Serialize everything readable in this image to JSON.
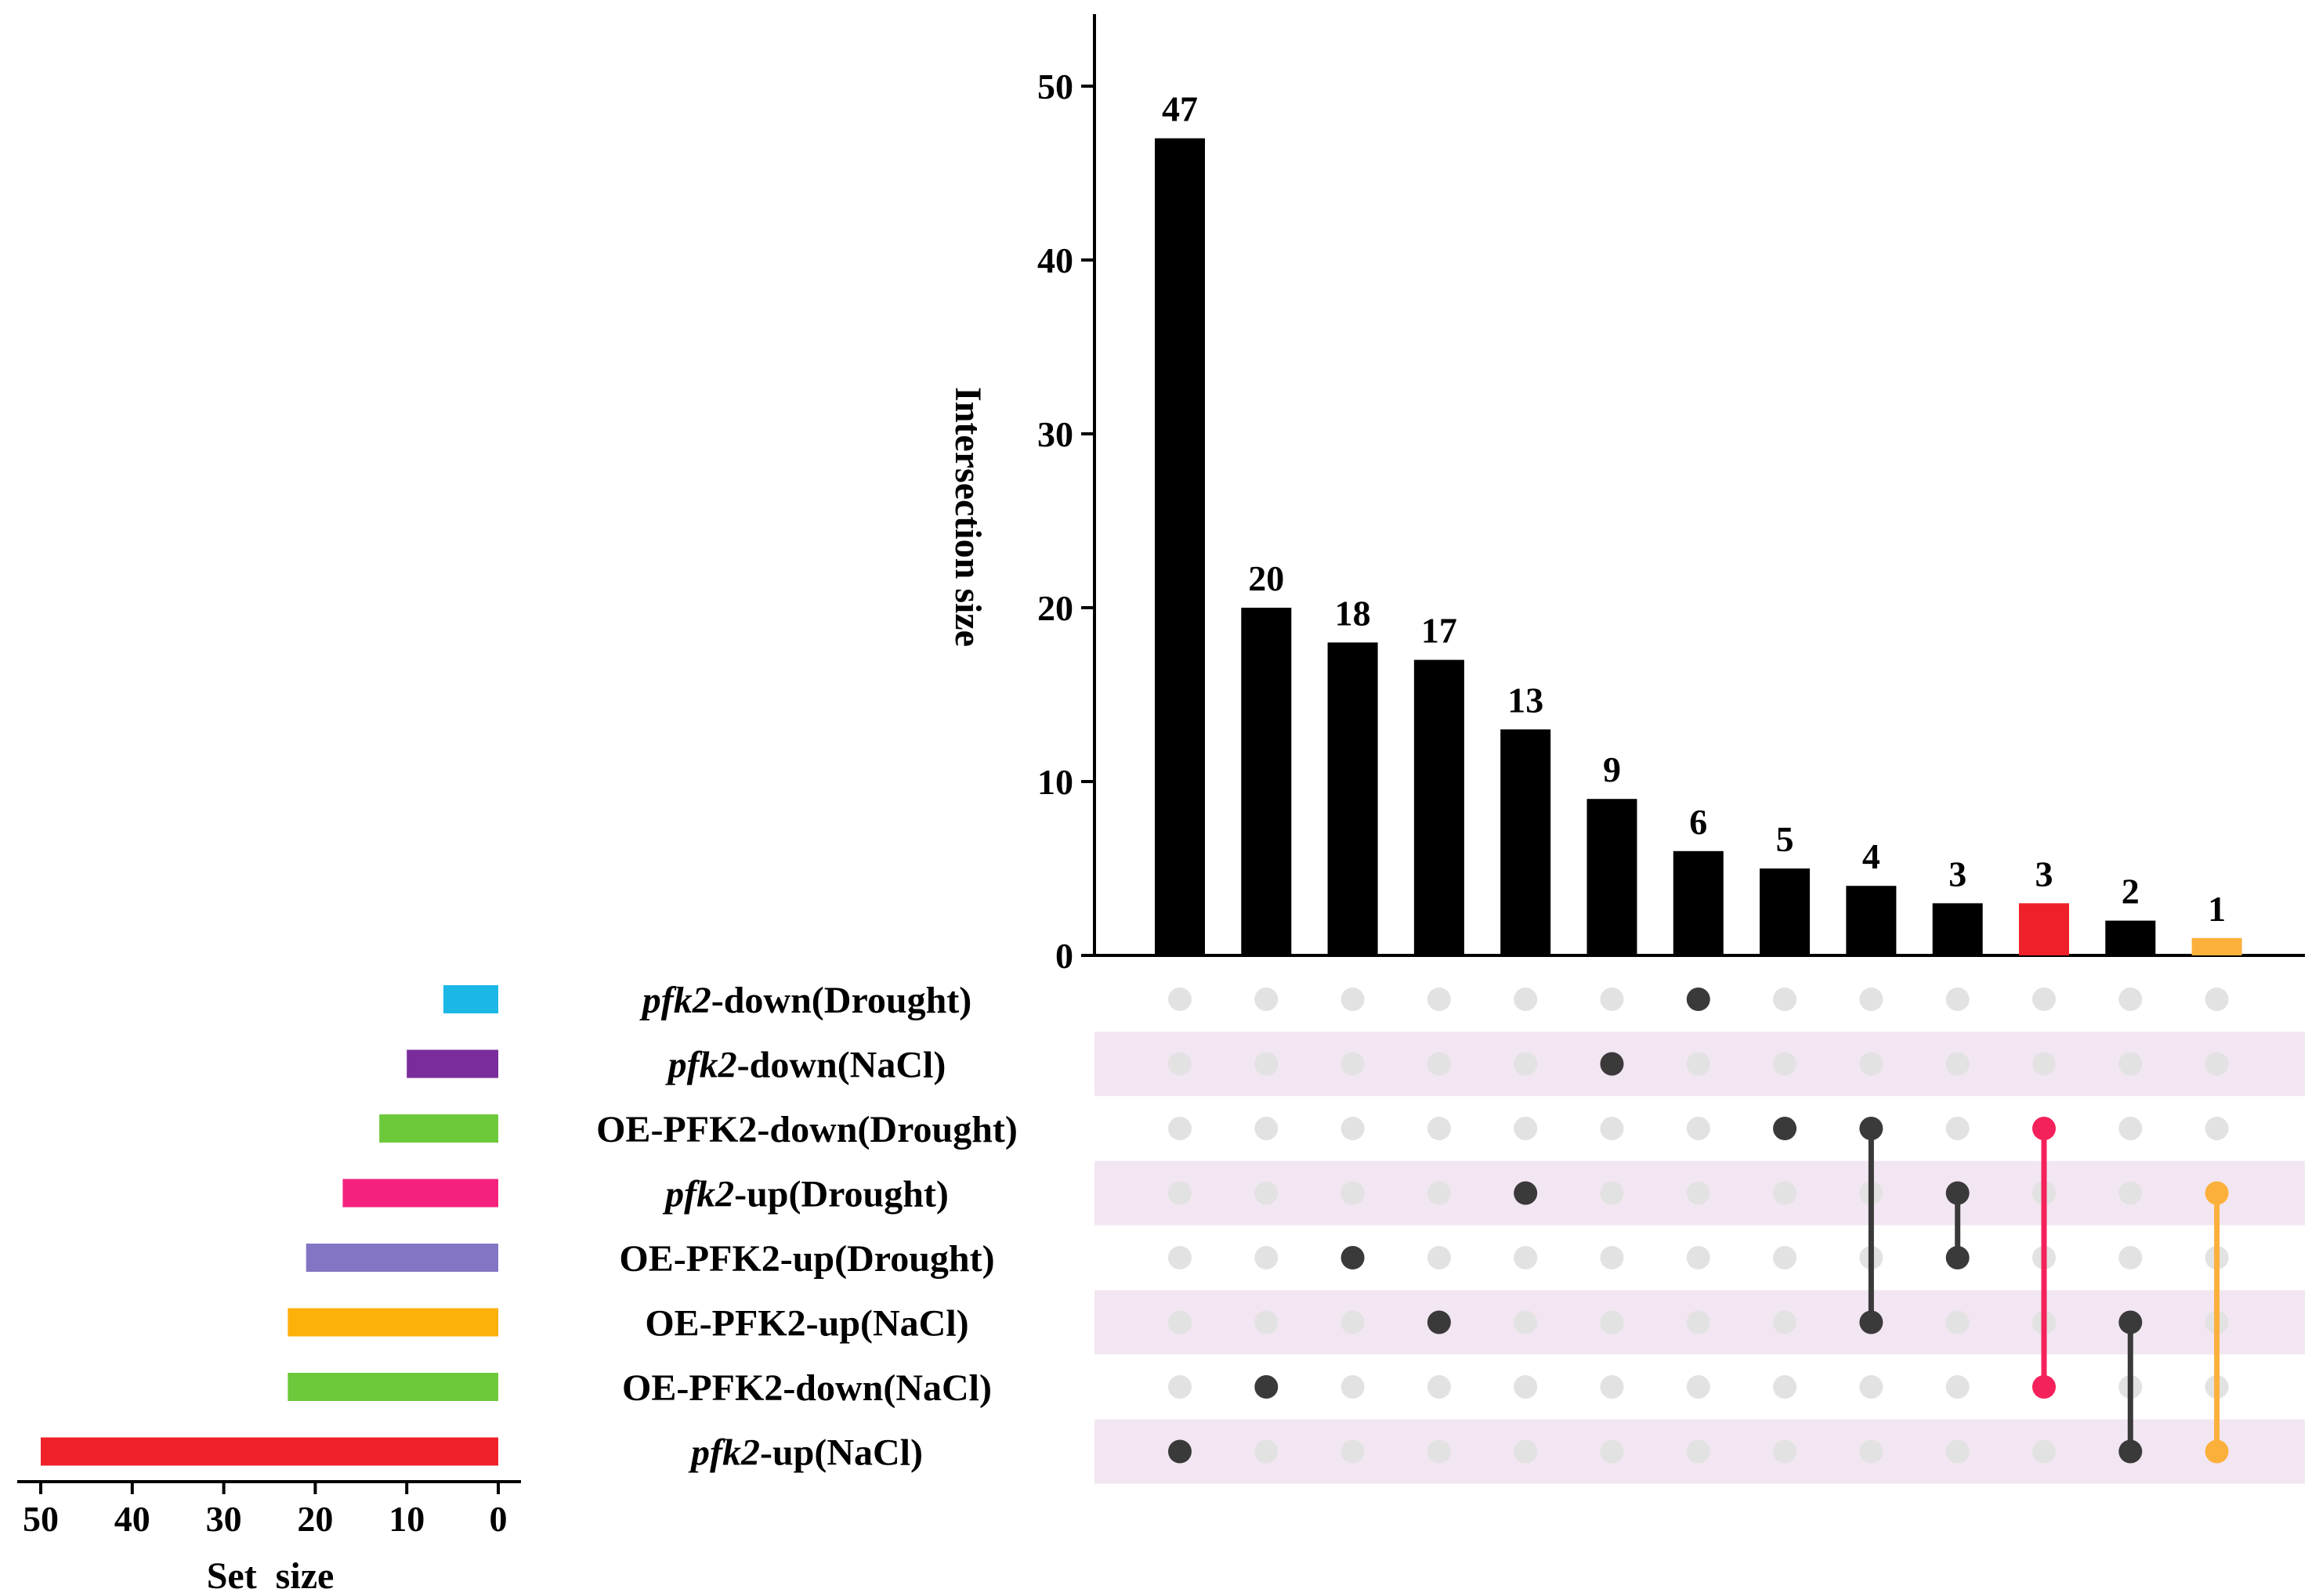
{
  "chart_data": {
    "type": "upset",
    "sets": [
      {
        "prefix": "pfk2",
        "suffix": "-down(Drought)",
        "size": 6,
        "color": "#1bb8e6"
      },
      {
        "prefix": "pfk2",
        "suffix": "-down(NaCl)",
        "size": 10,
        "color": "#7a2d9a"
      },
      {
        "prefix": "",
        "suffix": "OE-PFK2-down(Drought)",
        "size": 13,
        "color": "#6cc93a"
      },
      {
        "prefix": "pfk2",
        "suffix": "-up(Drought)",
        "size": 17,
        "color": "#f4217f"
      },
      {
        "prefix": "",
        "suffix": "OE-PFK2-up(Drought)",
        "size": 21,
        "color": "#8474c4"
      },
      {
        "prefix": "",
        "suffix": "OE-PFK2-up(NaCl)",
        "size": 23,
        "color": "#fcb00a"
      },
      {
        "prefix": "",
        "suffix": "OE-PFK2-down(NaCl)",
        "size": 23,
        "color": "#6cc93a"
      },
      {
        "prefix": "pfk2",
        "suffix": "-up(NaCl)",
        "size": 50,
        "color": "#f0202a"
      }
    ],
    "intersections": [
      {
        "value": 47,
        "label": "47",
        "sets": [
          7
        ],
        "color": "#000000",
        "dot_color": "#3a3a3a"
      },
      {
        "value": 20,
        "label": "20",
        "sets": [
          6
        ],
        "color": "#000000",
        "dot_color": "#3a3a3a"
      },
      {
        "value": 18,
        "label": "18",
        "sets": [
          4
        ],
        "color": "#000000",
        "dot_color": "#3a3a3a"
      },
      {
        "value": 17,
        "label": "17",
        "sets": [
          5
        ],
        "color": "#000000",
        "dot_color": "#3a3a3a"
      },
      {
        "value": 13,
        "label": "13",
        "sets": [
          3
        ],
        "color": "#000000",
        "dot_color": "#3a3a3a"
      },
      {
        "value": 9,
        "label": "9",
        "sets": [
          1
        ],
        "color": "#000000",
        "dot_color": "#3a3a3a"
      },
      {
        "value": 6,
        "label": "6",
        "sets": [
          0
        ],
        "color": "#000000",
        "dot_color": "#3a3a3a"
      },
      {
        "value": 5,
        "label": "5",
        "sets": [
          2
        ],
        "color": "#000000",
        "dot_color": "#3a3a3a"
      },
      {
        "value": 4,
        "label": "4",
        "sets": [
          2,
          5
        ],
        "color": "#000000",
        "dot_color": "#3a3a3a"
      },
      {
        "value": 3,
        "label": "3",
        "sets": [
          3,
          4
        ],
        "color": "#000000",
        "dot_color": "#3a3a3a"
      },
      {
        "value": 3,
        "label": "3",
        "sets": [
          2,
          6
        ],
        "color": "#f0202a",
        "dot_color": "#f4215a"
      },
      {
        "value": 2,
        "label": "2",
        "sets": [
          5,
          7
        ],
        "color": "#000000",
        "dot_color": "#3a3a3a"
      },
      {
        "value": 1,
        "label": "1",
        "sets": [
          3,
          7
        ],
        "color": "#fcb03c",
        "dot_color": "#fcb03c"
      }
    ],
    "y_axis": {
      "title": "Intersection size",
      "ylim": [
        0,
        55
      ],
      "ticks": [
        "0",
        "10",
        "20",
        "30",
        "40",
        "50"
      ]
    },
    "set_size_axis": {
      "title": "Set  size",
      "xlim": [
        0,
        50
      ],
      "ticks": [
        "50",
        "40",
        "30",
        "20",
        "10",
        "0"
      ]
    },
    "inactive_dot_color": "#e2e2e2",
    "stripe_color": "#f2e6f2"
  }
}
